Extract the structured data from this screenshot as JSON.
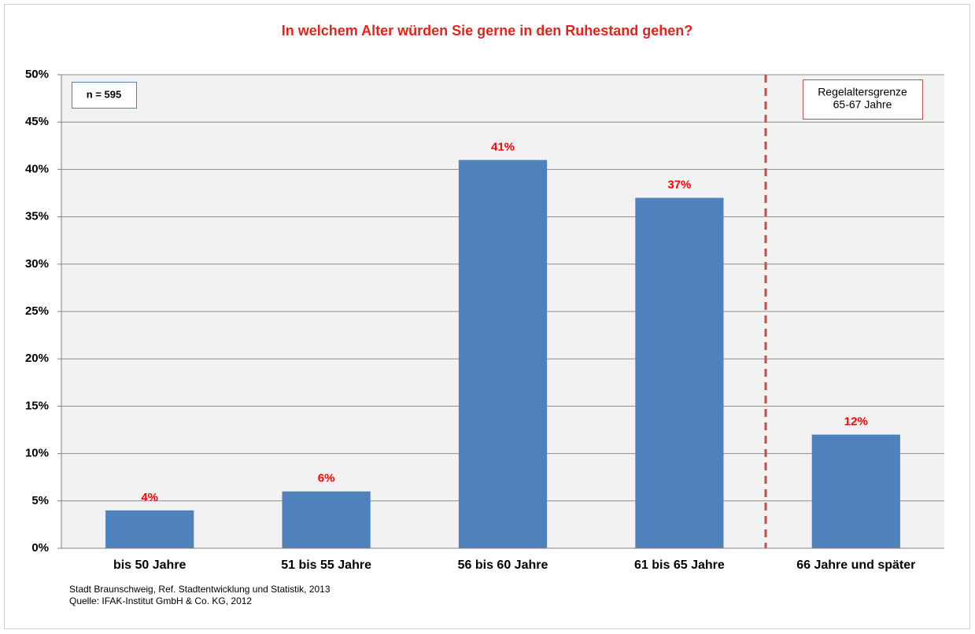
{
  "chart_data": {
    "type": "bar",
    "title": "In welchem Alter würden Sie gerne in den Ruhestand gehen?",
    "categories": [
      "bis 50 Jahre",
      "51 bis 55 Jahre",
      "56 bis 60 Jahre",
      "61 bis 65 Jahre",
      "66 Jahre und später"
    ],
    "values": [
      4,
      6,
      41,
      37,
      12
    ],
    "value_labels": [
      "4%",
      "6%",
      "41%",
      "37%",
      "12%"
    ],
    "color": "#4f81bd",
    "label_color": "#ff0000",
    "ylim": [
      0,
      50
    ],
    "yticks": [
      {
        "value": 0,
        "label": "0%"
      },
      {
        "value": 5,
        "label": "5%"
      },
      {
        "value": 10,
        "label": "10%"
      },
      {
        "value": 15,
        "label": "15%"
      },
      {
        "value": 20,
        "label": "20%"
      },
      {
        "value": 25,
        "label": "25%"
      },
      {
        "value": 30,
        "label": "30%"
      },
      {
        "value": 35,
        "label": "35%"
      },
      {
        "value": 40,
        "label": "40%"
      },
      {
        "value": 45,
        "label": "45%"
      },
      {
        "value": 50,
        "label": "50%"
      }
    ],
    "grid": true,
    "sample_box": "n = 595",
    "note_box": [
      "Regelaltersgrenze",
      "65-67 Jahre"
    ],
    "source": [
      "Stadt Braunschweig, Ref. Stadtentwicklung und Statistik, 2013",
      "Quelle: IFAK-Institut GmbH & Co. KG, 2012"
    ]
  }
}
